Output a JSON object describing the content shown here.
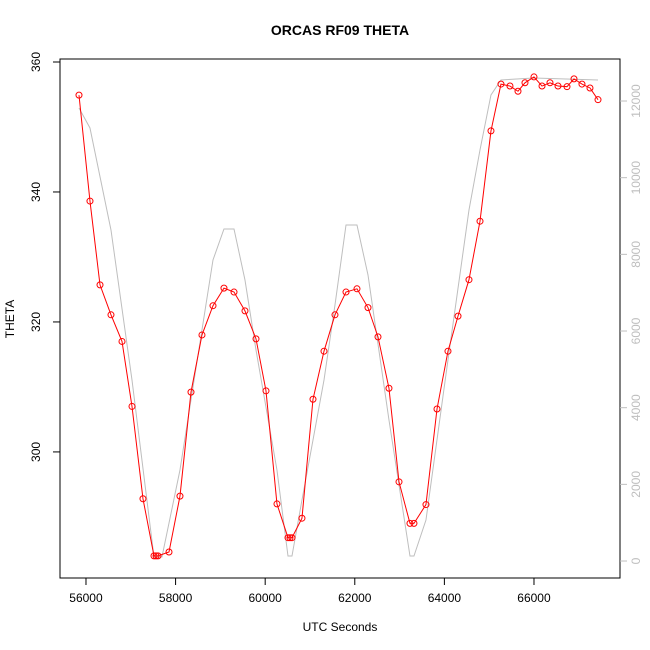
{
  "chart_data": {
    "type": "line",
    "title": "ORCAS RF09 THETA",
    "xlabel": "UTC Seconds",
    "ylabel": "THETA",
    "xlim": [
      55420,
      67920
    ],
    "xticks": [
      56000,
      58000,
      60000,
      62000,
      64000,
      66000
    ],
    "ylim": [
      280.6,
      360.46
    ],
    "yticks": [
      300,
      320,
      340,
      360
    ],
    "y2lim": [
      -443,
      13096
    ],
    "y2ticks": [
      0,
      2000,
      4000,
      6000,
      8000,
      10000,
      12000
    ],
    "y2color": "#bebebe",
    "series": [
      {
        "color": "#bebebe",
        "axis": "y2",
        "markers": false,
        "x": [
          55844,
          56089,
          56558,
          57027,
          57518,
          57696,
          58098,
          58589,
          58835,
          59080,
          59304,
          59549,
          59795,
          60263,
          60509,
          60598,
          60821,
          61313,
          61558,
          61804,
          62049,
          62295,
          62763,
          63232,
          63321,
          63589,
          64080,
          64549,
          64795,
          65040,
          65263,
          66000,
          67429
        ],
        "values": [
          11818,
          11297,
          8636,
          4722,
          104,
          104,
          2374,
          6027,
          7853,
          8662,
          8662,
          7331,
          5505,
          2374,
          130,
          130,
          1591,
          4722,
          6679,
          8766,
          8766,
          7462,
          3679,
          130,
          130,
          1070,
          5244,
          9157,
          10723,
          12158,
          12549,
          12601,
          12549
        ]
      },
      {
        "color": "#ff0000",
        "axis": "y",
        "markers": true,
        "x": [
          55844,
          56089,
          56313,
          56558,
          56804,
          57027,
          57272,
          57518,
          57563,
          57607,
          57853,
          58098,
          58344,
          58589,
          58835,
          59080,
          59304,
          59549,
          59795,
          60018,
          60263,
          60509,
          60554,
          60598,
          60821,
          61067,
          61313,
          61558,
          61804,
          62049,
          62295,
          62518,
          62763,
          62987,
          63232,
          63321,
          63589,
          63835,
          64080,
          64304,
          64549,
          64795,
          65040,
          65263,
          65464,
          65643,
          65799,
          66000,
          66179,
          66357,
          66536,
          66737,
          66893,
          67071,
          67250,
          67429
        ],
        "values": [
          354.9,
          338.6,
          325.7,
          321.1,
          317.0,
          307.0,
          292.8,
          284.0,
          284.0,
          284.0,
          284.6,
          293.2,
          309.2,
          318.0,
          322.5,
          325.2,
          324.6,
          321.7,
          317.4,
          309.4,
          292.0,
          286.8,
          286.8,
          286.8,
          289.8,
          308.1,
          315.5,
          321.1,
          324.6,
          325.1,
          322.2,
          317.7,
          309.8,
          295.4,
          289.0,
          289.0,
          291.9,
          306.6,
          315.5,
          320.9,
          326.5,
          335.5,
          349.4,
          356.6,
          356.3,
          355.5,
          356.8,
          357.7,
          356.3,
          356.8,
          356.3,
          356.2,
          357.4,
          356.6,
          356.0,
          354.2
        ]
      }
    ]
  }
}
